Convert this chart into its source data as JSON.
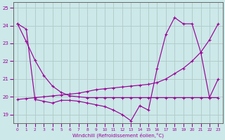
{
  "xlabel": "Windchill (Refroidissement éolien,°C)",
  "bg_color": "#cce8e8",
  "grid_color": "#b0c8c8",
  "line_color": "#990099",
  "x_values": [
    0,
    1,
    2,
    3,
    4,
    5,
    6,
    7,
    8,
    9,
    10,
    11,
    12,
    13,
    14,
    15,
    16,
    17,
    18,
    19,
    20,
    21,
    22,
    23
  ],
  "y_jagged": [
    24.1,
    23.8,
    19.85,
    19.75,
    19.65,
    19.8,
    19.8,
    19.75,
    19.65,
    19.55,
    19.45,
    19.25,
    19.0,
    18.65,
    19.5,
    19.25,
    21.6,
    23.5,
    24.45,
    24.1,
    24.1,
    22.5,
    19.95,
    21.0
  ],
  "y_ascend": [
    19.85,
    19.9,
    19.95,
    20.0,
    20.05,
    20.1,
    20.15,
    20.2,
    20.3,
    20.4,
    20.45,
    20.5,
    20.55,
    20.6,
    20.65,
    20.7,
    20.8,
    21.0,
    21.3,
    21.6,
    22.0,
    22.5,
    23.2,
    24.1
  ],
  "y_descend": [
    24.1,
    23.1,
    22.05,
    21.2,
    20.6,
    20.25,
    20.05,
    20.0,
    19.95,
    19.95,
    19.95,
    19.95,
    19.95,
    19.95,
    19.95,
    19.95,
    19.95,
    19.95,
    19.95,
    19.95,
    19.95,
    19.95,
    19.95,
    19.95
  ],
  "ylim": [
    18.5,
    25.3
  ],
  "xlim": [
    -0.5,
    23.5
  ],
  "yticks": [
    19,
    20,
    21,
    22,
    23,
    24,
    25
  ],
  "xticks": [
    0,
    1,
    2,
    3,
    4,
    5,
    6,
    7,
    8,
    9,
    10,
    11,
    12,
    13,
    14,
    15,
    16,
    17,
    18,
    19,
    20,
    21,
    22,
    23
  ]
}
